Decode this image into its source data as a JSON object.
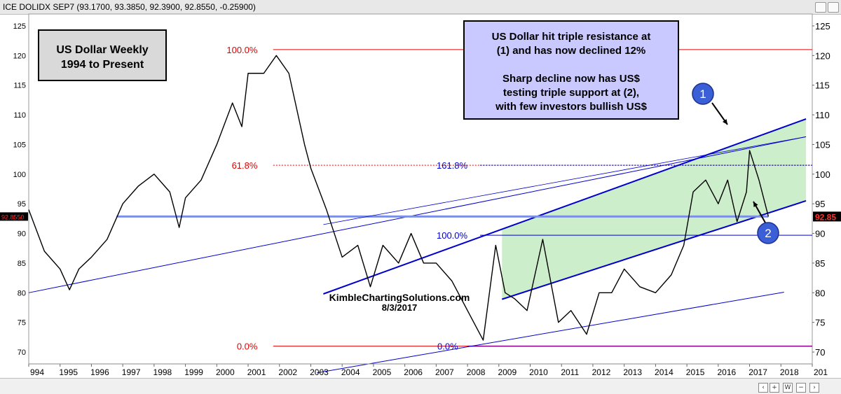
{
  "header": {
    "title": "ICE DOLIDX SEP7 (93.1700, 93.3850, 92.3900, 92.8550, -0.25900)"
  },
  "colors": {
    "fib_red": "#e00000",
    "channel_blue": "#0000cc",
    "support_line": "#7b8fe6",
    "channel_fill": "#c8ecc4",
    "price": "#000000",
    "zero_line": "#800080",
    "label_box": "#d9d9d9",
    "callout_box": "#c9c9ff"
  },
  "chart_data": {
    "type": "line",
    "title": "US Dollar Weekly",
    "subtitle": "1994 to Present",
    "x_ticks": [
      "994",
      "1995",
      "1996",
      "1997",
      "1998",
      "1999",
      "2000",
      "2001",
      "2002",
      "2003",
      "2004",
      "2005",
      "2006",
      "2007",
      "2008",
      "2009",
      "2010",
      "2011",
      "2012",
      "2013",
      "2014",
      "2015",
      "2016",
      "2017",
      "2018",
      "201"
    ],
    "y_ticks": [
      "125",
      "120",
      "115",
      "110",
      "105",
      "100",
      "95",
      "90",
      "85",
      "80",
      "75",
      "70"
    ],
    "ylim": [
      68,
      127
    ],
    "xlim": [
      1994,
      2019
    ],
    "grid": false,
    "series": [
      {
        "type": "price",
        "x": [
          1994.0,
          1994.5,
          1995.0,
          1995.3,
          1995.6,
          1996.0,
          1996.5,
          1997.0,
          1997.5,
          1998.0,
          1998.5,
          1998.8,
          1999.0,
          1999.5,
          2000.0,
          2000.5,
          2000.8,
          2001.0,
          2001.5,
          2001.9,
          2002.3,
          2002.8,
          2003.0,
          2003.5,
          2004.0,
          2004.5,
          2004.9,
          2005.3,
          2005.8,
          2006.2,
          2006.6,
          2007.0,
          2007.5,
          2007.8,
          2008.2,
          2008.5,
          2008.9,
          2009.2,
          2009.5,
          2009.9,
          2010.4,
          2010.9,
          2011.3,
          2011.8,
          2012.2,
          2012.6,
          2013.0,
          2013.5,
          2014.0,
          2014.5,
          2014.9,
          2015.2,
          2015.6,
          2016.0,
          2016.3,
          2016.6,
          2016.9,
          2017.0,
          2017.3,
          2017.6
        ],
        "y": [
          94,
          87,
          84,
          80.5,
          84,
          86,
          89,
          95,
          98,
          100,
          97,
          91,
          96,
          99,
          105,
          112,
          108,
          117,
          117,
          120,
          117,
          105,
          101,
          94,
          86,
          88,
          81,
          88,
          85,
          90,
          85,
          85,
          82,
          79,
          75,
          72,
          88,
          80,
          79,
          77,
          89,
          75,
          77,
          73,
          80,
          80,
          84,
          81,
          80,
          83,
          88,
          97,
          99,
          95,
          99,
          92,
          97,
          104,
          99,
          92.85
        ]
      },
      {
        "name": "",
        "type": "level",
        "y": 121,
        "label": "100.0%"
      },
      {
        "name": "",
        "type": "level",
        "y": 101.5,
        "label": "61.8%"
      },
      {
        "name": "",
        "type": "level",
        "y": 71,
        "label": "0.0%"
      },
      {
        "name": "",
        "type": "level",
        "y": 101.5,
        "label": "161.8%"
      },
      {
        "name": "",
        "type": "level",
        "y": 89.7,
        "label": "100.0%"
      },
      {
        "name": "",
        "type": "level",
        "y": 71,
        "label": "0.0%"
      }
    ],
    "trendlines": [
      {
        "id": "channel-upper",
        "x": [
          2003.4,
          2018.8
        ],
        "y": [
          79.8,
          109.3
        ]
      },
      {
        "id": "channel-lower",
        "x": [
          2009.1,
          2018.8
        ],
        "y": [
          78.9,
          95.5
        ]
      },
      {
        "id": "outer-upper",
        "x": [
          1994.0,
          2018.8
        ],
        "y": [
          80.0,
          106.3
        ]
      },
      {
        "id": "outer-lower",
        "x": [
          2003.2,
          2018.1
        ],
        "y": [
          66.5,
          80.1
        ]
      },
      {
        "id": "support-horizontal",
        "x": [
          1996.8,
          2017.6
        ],
        "y": [
          92.85,
          92.85
        ]
      }
    ],
    "last_price": "92.85",
    "last_price_left": "92.8550",
    "annotations": {
      "callout": [
        "US Dollar hit triple resistance at",
        "(1) and has now declined 12%",
        "",
        "Sharp decline now has US$",
        "testing triple support at (2),",
        "with few investors bullish US$"
      ],
      "fib_red": [
        "100.0%",
        "61.8%",
        "0.0%"
      ],
      "fib_blue": [
        "161.8%",
        "100.0%",
        "0.0%"
      ],
      "markers": [
        "1",
        "2"
      ],
      "watermark": "KimbleChartingSolutions.com",
      "date": "8/3/2017"
    }
  }
}
